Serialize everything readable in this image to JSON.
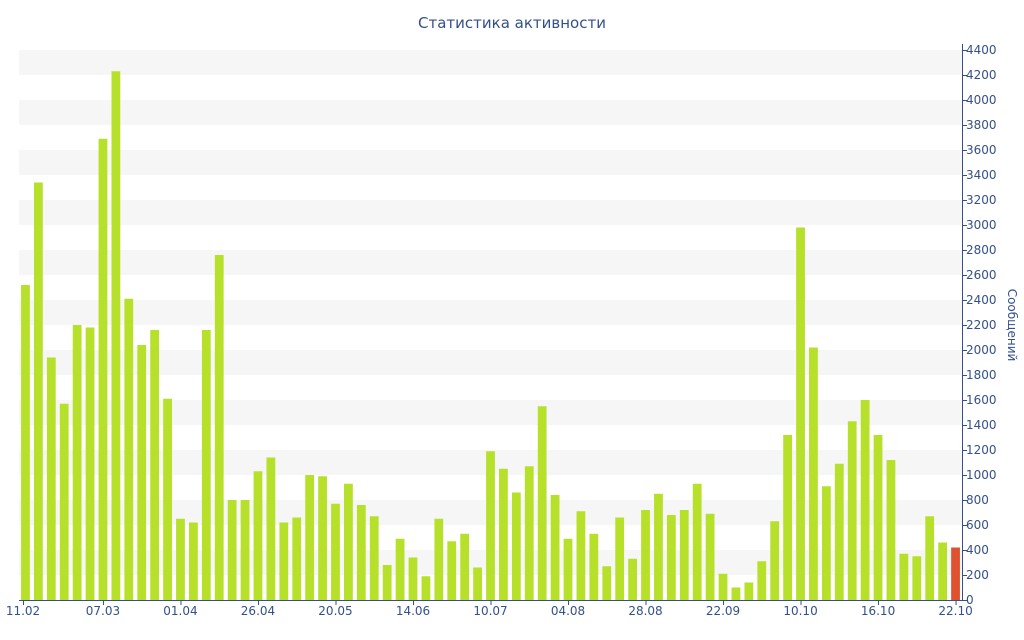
{
  "chart_data": {
    "type": "bar",
    "title": "Статистика активности",
    "ylabel": "Сообщений",
    "ylim": [
      0,
      4400
    ],
    "y_ticks": [
      0,
      200,
      400,
      600,
      800,
      1000,
      1200,
      1400,
      1600,
      1800,
      2000,
      2200,
      2400,
      2600,
      2800,
      3000,
      3200,
      3400,
      3600,
      3800,
      4000,
      4200,
      4400
    ],
    "y_axis_position": "right",
    "grid": "alternating horizontal bands",
    "x_tick_labels": [
      {
        "label": "11.02",
        "index": 0
      },
      {
        "label": "07.03",
        "index": 6
      },
      {
        "label": "01.04",
        "index": 12
      },
      {
        "label": "26.04",
        "index": 18
      },
      {
        "label": "20.05",
        "index": 24
      },
      {
        "label": "14.06",
        "index": 30
      },
      {
        "label": "10.07",
        "index": 36
      },
      {
        "label": "04.08",
        "index": 42
      },
      {
        "label": "28.08",
        "index": 48
      },
      {
        "label": "22.09",
        "index": 54
      },
      {
        "label": "10.10",
        "index": 60
      },
      {
        "label": "16.10",
        "index": 66
      },
      {
        "label": "22.10",
        "index": 72
      }
    ],
    "values": [
      2520,
      3340,
      1940,
      1570,
      2200,
      2180,
      3690,
      4230,
      2410,
      2040,
      2160,
      1610,
      650,
      620,
      2160,
      2760,
      800,
      800,
      1030,
      1140,
      620,
      660,
      1000,
      990,
      770,
      930,
      760,
      670,
      280,
      490,
      340,
      190,
      650,
      470,
      530,
      260,
      1190,
      1050,
      860,
      1070,
      1550,
      840,
      490,
      710,
      530,
      270,
      660,
      330,
      720,
      850,
      680,
      720,
      930,
      690,
      210,
      100,
      140,
      310,
      630,
      1320,
      2980,
      2020,
      910,
      1090,
      1430,
      1600,
      1320,
      1120,
      370,
      350,
      670,
      460,
      420
    ],
    "highlight_index": 72,
    "colors": {
      "bar": "#b6e02a",
      "bar_highlight": "#e0522f",
      "band": "#f6f6f6",
      "axis": "#34508a"
    }
  }
}
